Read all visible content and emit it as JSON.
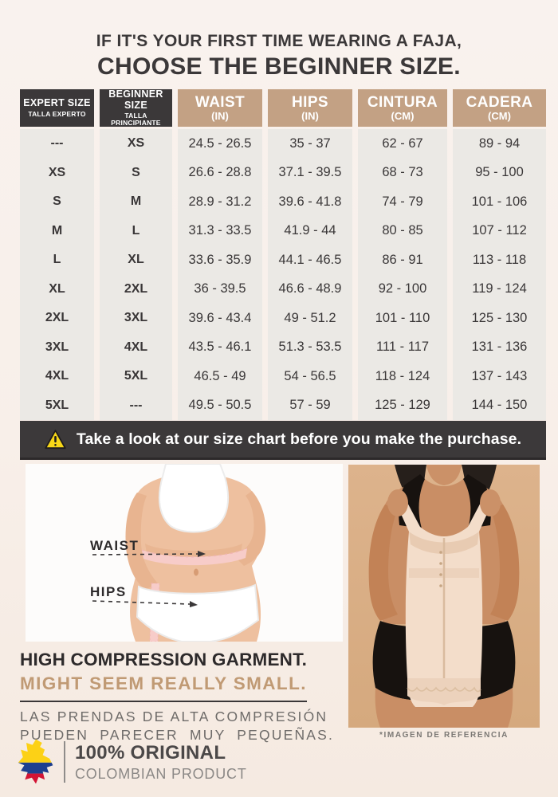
{
  "page": {
    "title_line1": "IF IT'S YOUR FIRST TIME WEARING A FAJA,",
    "title_line2": "CHOOSE THE BEGINNER SIZE."
  },
  "size_table": {
    "headers": [
      {
        "label": "EXPERT SIZE",
        "sublabel": "TALLA EXPERTO"
      },
      {
        "label": "BEGINNER SIZE",
        "sublabel": "TALLA PRINCIPIANTE"
      },
      {
        "label": "WAIST",
        "sublabel": "(IN)"
      },
      {
        "label": "HIPS",
        "sublabel": "(IN)"
      },
      {
        "label": "CINTURA",
        "sublabel": "(CM)"
      },
      {
        "label": "CADERA",
        "sublabel": "(CM)"
      }
    ],
    "rows": [
      [
        "---",
        "XS",
        "24.5 - 26.5",
        "35 - 37",
        "62 - 67",
        "89 - 94"
      ],
      [
        "XS",
        "S",
        "26.6 - 28.8",
        "37.1 - 39.5",
        "68 - 73",
        "95 - 100"
      ],
      [
        "S",
        "M",
        "28.9 - 31.2",
        "39.6 - 41.8",
        "74 - 79",
        "101 - 106"
      ],
      [
        "M",
        "L",
        "31.3 - 33.5",
        "41.9 - 44",
        "80 - 85",
        "107 - 112"
      ],
      [
        "L",
        "XL",
        "33.6 - 35.9",
        "44.1 - 46.5",
        "86 - 91",
        "113 - 118"
      ],
      [
        "XL",
        "2XL",
        "36 - 39.5",
        "46.6 - 48.9",
        "92 - 100",
        "119 - 124"
      ],
      [
        "2XL",
        "3XL",
        "39.6 - 43.4",
        "49 - 51.2",
        "101 - 110",
        "125 - 130"
      ],
      [
        "3XL",
        "4XL",
        "43.5 - 46.1",
        "51.3 - 53.5",
        "111 - 117",
        "131 - 136"
      ],
      [
        "4XL",
        "5XL",
        "46.5 - 49",
        "54 - 56.5",
        "118 - 124",
        "137 - 143"
      ],
      [
        "5XL",
        "---",
        "49.5 - 50.5",
        "57 - 59",
        "125 - 129",
        "144 - 150"
      ]
    ]
  },
  "warning_banner": {
    "icon": "warning-triangle-icon",
    "text": "Take a look at our size chart before you make the purchase."
  },
  "measurement_figure": {
    "waist_label": "WAIST",
    "hips_label": "HIPS"
  },
  "garment_figure": {
    "caption": "*IMAGEN DE REFERENCIA"
  },
  "compression_note": {
    "line1": "HIGH COMPRESSION GARMENT.",
    "line2": "MIGHT SEEM REALLY SMALL.",
    "line3": "LAS PRENDAS DE ALTA COMPRESIÓN",
    "line4": "PUEDEN PARECER MUY PEQUEÑAS."
  },
  "brand": {
    "line1": "100% ORIGINAL",
    "line2": "COLOMBIAN PRODUCT",
    "flag_icon": "colombia-map-flag-icon"
  },
  "colors": {
    "background_top": "#f9f2ee",
    "background_bottom": "#f5eae1",
    "header_dark": "#3b3839",
    "header_tan": "#c3a184",
    "cell_background": "#ebe9e5",
    "banner_background": "#3c393a",
    "warning_yellow": "#f7d718",
    "accent_tan_text": "#c09a74",
    "flag_yellow": "#fcd116",
    "flag_blue": "#1e3f8f",
    "flag_red": "#d31334"
  }
}
